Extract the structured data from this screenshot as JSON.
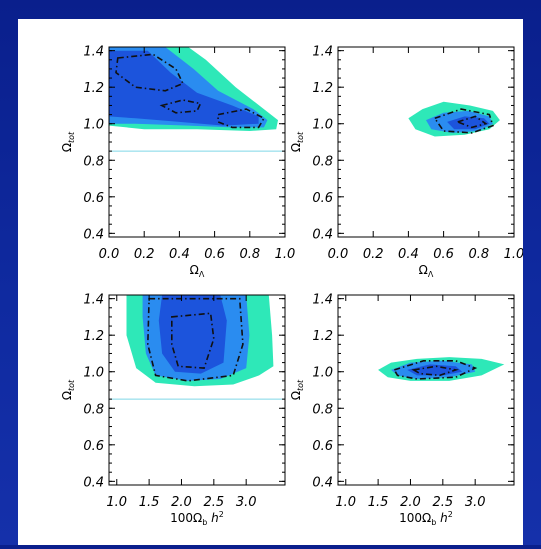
{
  "colors": {
    "background": "#0d24a0",
    "panel": "#ffffff",
    "outer_contour": "#2ee8b8",
    "mid_contour": "#2a8cf0",
    "inner_contour": "#1c54dc",
    "reference_line": "#7fd6e6"
  },
  "chart_data": [
    {
      "type": "contour",
      "position": "top-left",
      "xlabel": "Ω_Λ",
      "ylabel": "Ω_tot",
      "xlim": [
        0.0,
        1.0
      ],
      "ylim": [
        0.38,
        1.42
      ],
      "xticks": [
        "0.0",
        "0.2",
        "0.4",
        "0.6",
        "0.8",
        "1.0"
      ],
      "yticks": [
        "0.4",
        "0.6",
        "0.8",
        "1.0",
        "1.2",
        "1.4"
      ],
      "reference_line_y": 0.85,
      "contours": [
        {
          "level": "outer",
          "points": [
            [
              0.0,
              1.42
            ],
            [
              0.45,
              1.42
            ],
            [
              0.55,
              1.35
            ],
            [
              0.72,
              1.2
            ],
            [
              0.88,
              1.08
            ],
            [
              0.96,
              1.02
            ],
            [
              0.95,
              0.97
            ],
            [
              0.8,
              0.96
            ],
            [
              0.5,
              0.97
            ],
            [
              0.2,
              0.97
            ],
            [
              0.0,
              0.99
            ]
          ]
        },
        {
          "level": "mid",
          "points": [
            [
              0.0,
              1.42
            ],
            [
              0.32,
              1.42
            ],
            [
              0.48,
              1.3
            ],
            [
              0.62,
              1.18
            ],
            [
              0.82,
              1.08
            ],
            [
              0.9,
              1.02
            ],
            [
              0.88,
              0.98
            ],
            [
              0.7,
              0.98
            ],
            [
              0.45,
              0.99
            ],
            [
              0.15,
              1.0
            ],
            [
              0.0,
              1.0
            ]
          ]
        },
        {
          "level": "inner",
          "points": [
            [
              0.0,
              1.4
            ],
            [
              0.22,
              1.4
            ],
            [
              0.35,
              1.28
            ],
            [
              0.5,
              1.17
            ],
            [
              0.7,
              1.1
            ],
            [
              0.85,
              1.04
            ],
            [
              0.85,
              1.0
            ],
            [
              0.65,
              0.99
            ],
            [
              0.4,
              1.01
            ],
            [
              0.15,
              1.03
            ],
            [
              0.0,
              1.04
            ]
          ]
        }
      ],
      "dashed_contours": [
        {
          "points": [
            [
              0.05,
              1.36
            ],
            [
              0.25,
              1.38
            ],
            [
              0.38,
              1.3
            ],
            [
              0.42,
              1.22
            ],
            [
              0.32,
              1.18
            ],
            [
              0.15,
              1.2
            ],
            [
              0.04,
              1.28
            ]
          ]
        },
        {
          "points": [
            [
              0.3,
              1.1
            ],
            [
              0.42,
              1.13
            ],
            [
              0.52,
              1.11
            ],
            [
              0.5,
              1.07
            ],
            [
              0.38,
              1.06
            ]
          ]
        },
        {
          "points": [
            [
              0.62,
              1.05
            ],
            [
              0.78,
              1.08
            ],
            [
              0.88,
              1.03
            ],
            [
              0.85,
              0.98
            ],
            [
              0.7,
              0.98
            ],
            [
              0.62,
              1.01
            ]
          ]
        }
      ]
    },
    {
      "type": "contour",
      "position": "top-right",
      "xlabel": "Ω_Λ",
      "ylabel": "Ω_tot",
      "xlim": [
        0.0,
        1.0
      ],
      "ylim": [
        0.38,
        1.42
      ],
      "xticks": [
        "0.0",
        "0.2",
        "0.4",
        "0.6",
        "0.8",
        "1.0"
      ],
      "yticks": [
        "0.4",
        "0.6",
        "0.8",
        "1.0",
        "1.2",
        "1.4"
      ],
      "reference_line_y": null,
      "contours": [
        {
          "level": "outer",
          "points": [
            [
              0.4,
              1.03
            ],
            [
              0.48,
              1.08
            ],
            [
              0.6,
              1.12
            ],
            [
              0.75,
              1.1
            ],
            [
              0.88,
              1.07
            ],
            [
              0.92,
              1.02
            ],
            [
              0.86,
              0.97
            ],
            [
              0.72,
              0.94
            ],
            [
              0.55,
              0.93
            ],
            [
              0.44,
              0.97
            ]
          ]
        },
        {
          "level": "mid",
          "points": [
            [
              0.5,
              1.02
            ],
            [
              0.6,
              1.06
            ],
            [
              0.74,
              1.07
            ],
            [
              0.86,
              1.04
            ],
            [
              0.88,
              1.0
            ],
            [
              0.8,
              0.96
            ],
            [
              0.65,
              0.95
            ],
            [
              0.53,
              0.97
            ]
          ]
        },
        {
          "level": "inner",
          "points": [
            [
              0.62,
              1.01
            ],
            [
              0.72,
              1.04
            ],
            [
              0.83,
              1.03
            ],
            [
              0.86,
              1.0
            ],
            [
              0.78,
              0.97
            ],
            [
              0.66,
              0.97
            ]
          ]
        }
      ],
      "dashed_contours": [
        {
          "points": [
            [
              0.55,
              1.03
            ],
            [
              0.7,
              1.08
            ],
            [
              0.86,
              1.05
            ],
            [
              0.88,
              0.99
            ],
            [
              0.76,
              0.95
            ],
            [
              0.6,
              0.96
            ]
          ]
        },
        {
          "points": [
            [
              0.68,
              1.01
            ],
            [
              0.78,
              1.04
            ],
            [
              0.84,
              1.0
            ],
            [
              0.76,
              0.98
            ]
          ]
        }
      ]
    },
    {
      "type": "contour",
      "position": "bottom-left",
      "xlabel": "100Ω_b h²",
      "ylabel": "Ω_tot",
      "xlim": [
        0.88,
        3.6
      ],
      "ylim": [
        0.38,
        1.42
      ],
      "xticks": [
        "1.0",
        "1.5",
        "2.0",
        "2.5",
        "3.0"
      ],
      "yticks": [
        "0.4",
        "0.6",
        "0.8",
        "1.0",
        "1.2",
        "1.4"
      ],
      "reference_line_y": 0.85,
      "contours": [
        {
          "level": "outer",
          "points": [
            [
              1.15,
              1.42
            ],
            [
              3.35,
              1.42
            ],
            [
              3.4,
              1.2
            ],
            [
              3.42,
              1.03
            ],
            [
              3.2,
              0.98
            ],
            [
              2.8,
              0.93
            ],
            [
              2.2,
              0.92
            ],
            [
              1.6,
              0.94
            ],
            [
              1.3,
              1.02
            ],
            [
              1.15,
              1.2
            ]
          ]
        },
        {
          "level": "mid",
          "points": [
            [
              1.4,
              1.42
            ],
            [
              3.0,
              1.42
            ],
            [
              3.05,
              1.2
            ],
            [
              3.0,
              1.02
            ],
            [
              2.6,
              0.96
            ],
            [
              2.1,
              0.95
            ],
            [
              1.6,
              0.98
            ],
            [
              1.45,
              1.1
            ],
            [
              1.4,
              1.3
            ]
          ]
        },
        {
          "level": "inner",
          "points": [
            [
              1.7,
              1.42
            ],
            [
              2.6,
              1.42
            ],
            [
              2.7,
              1.28
            ],
            [
              2.65,
              1.05
            ],
            [
              2.3,
              0.99
            ],
            [
              1.9,
              1.0
            ],
            [
              1.7,
              1.1
            ],
            [
              1.65,
              1.28
            ]
          ]
        }
      ],
      "dashed_contours": [
        {
          "points": [
            [
              1.5,
              1.4
            ],
            [
              2.9,
              1.4
            ],
            [
              2.95,
              1.15
            ],
            [
              2.8,
              0.98
            ],
            [
              2.1,
              0.95
            ],
            [
              1.6,
              0.98
            ],
            [
              1.48,
              1.15
            ]
          ]
        },
        {
          "points": [
            [
              1.85,
              1.3
            ],
            [
              2.45,
              1.32
            ],
            [
              2.5,
              1.18
            ],
            [
              2.35,
              1.02
            ],
            [
              1.95,
              1.03
            ],
            [
              1.85,
              1.15
            ]
          ]
        }
      ]
    },
    {
      "type": "contour",
      "position": "bottom-right",
      "xlabel": "100Ω_b h²",
      "ylabel": "Ω_tot",
      "xlim": [
        0.88,
        3.6
      ],
      "ylim": [
        0.38,
        1.42
      ],
      "xticks": [
        "1.0",
        "1.5",
        "2.0",
        "2.5",
        "3.0"
      ],
      "yticks": [
        "0.4",
        "0.6",
        "0.8",
        "1.0",
        "1.2",
        "1.4"
      ],
      "reference_line_y": null,
      "contours": [
        {
          "level": "outer",
          "points": [
            [
              1.5,
              1.01
            ],
            [
              1.7,
              1.05
            ],
            [
              2.1,
              1.07
            ],
            [
              2.6,
              1.08
            ],
            [
              3.1,
              1.07
            ],
            [
              3.45,
              1.04
            ],
            [
              3.1,
              0.98
            ],
            [
              2.6,
              0.95
            ],
            [
              2.0,
              0.95
            ],
            [
              1.65,
              0.97
            ]
          ]
        },
        {
          "level": "mid",
          "points": [
            [
              1.7,
              1.01
            ],
            [
              2.0,
              1.05
            ],
            [
              2.5,
              1.06
            ],
            [
              2.95,
              1.04
            ],
            [
              3.0,
              1.0
            ],
            [
              2.6,
              0.97
            ],
            [
              2.1,
              0.96
            ],
            [
              1.8,
              0.98
            ]
          ]
        },
        {
          "level": "inner",
          "points": [
            [
              1.95,
              1.01
            ],
            [
              2.3,
              1.04
            ],
            [
              2.7,
              1.03
            ],
            [
              2.8,
              1.0
            ],
            [
              2.5,
              0.98
            ],
            [
              2.1,
              0.98
            ]
          ]
        }
      ],
      "dashed_contours": [
        {
          "points": [
            [
              1.75,
              1.01
            ],
            [
              2.2,
              1.06
            ],
            [
              2.7,
              1.06
            ],
            [
              3.0,
              1.02
            ],
            [
              2.7,
              0.97
            ],
            [
              2.1,
              0.96
            ],
            [
              1.8,
              0.98
            ]
          ]
        },
        {
          "points": [
            [
              2.05,
              1.01
            ],
            [
              2.4,
              1.03
            ],
            [
              2.7,
              1.01
            ],
            [
              2.45,
              0.98
            ],
            [
              2.15,
              0.99
            ]
          ]
        }
      ]
    }
  ]
}
